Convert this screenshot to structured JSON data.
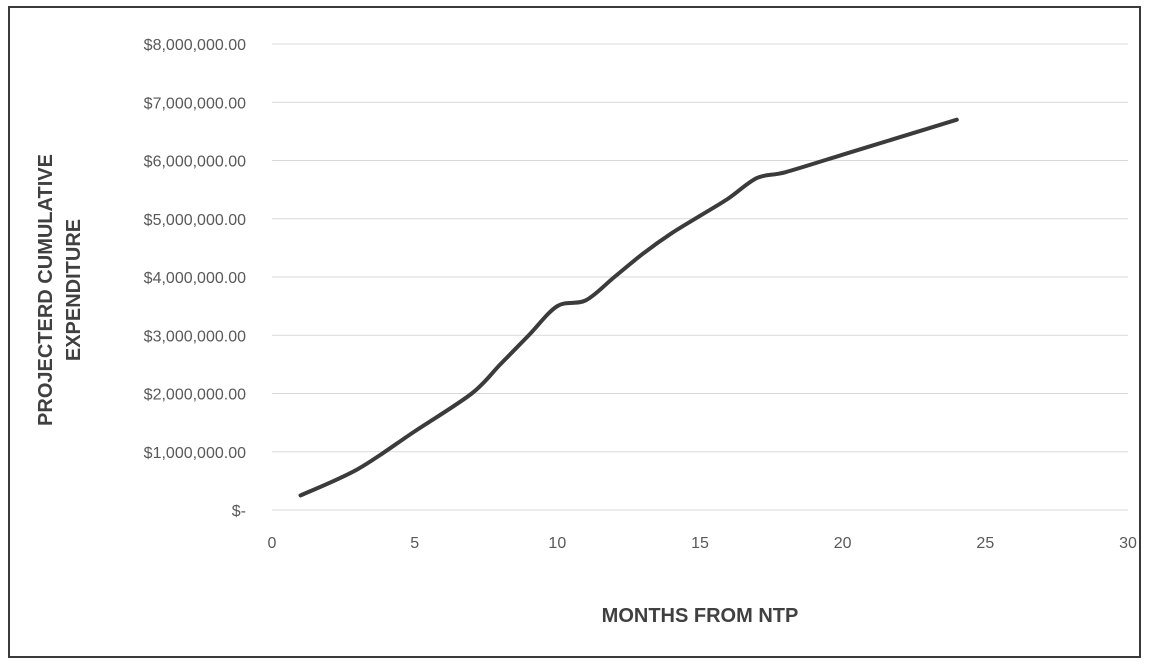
{
  "chart_data": {
    "type": "line",
    "title": "",
    "xlabel": "MONTHS FROM NTP",
    "ylabel_lines": [
      "PROJECTERD CUMULATIVE",
      "EXPENDITURE"
    ],
    "xlim": [
      0,
      30
    ],
    "ylim": [
      0,
      8000000
    ],
    "x_ticks": [
      0,
      5,
      10,
      15,
      20,
      25,
      30
    ],
    "y_ticks": [
      0,
      1000000,
      2000000,
      3000000,
      4000000,
      5000000,
      6000000,
      7000000,
      8000000
    ],
    "x_tick_labels": [
      "0",
      "5",
      "10",
      "15",
      "20",
      "25",
      "30"
    ],
    "y_tick_labels": [
      "$-",
      "$1,000,000.00",
      "$2,000,000.00",
      "$3,000,000.00",
      "$4,000,000.00",
      "$5,000,000.00",
      "$6,000,000.00",
      "$7,000,000.00",
      "$8,000,000.00"
    ],
    "grid": true,
    "legend": "none",
    "line_color": "#3b3b3b",
    "series": [
      {
        "x": [
          1,
          3,
          5,
          7,
          8,
          9,
          10,
          11,
          12,
          13,
          14,
          15,
          16,
          17,
          18,
          20,
          22,
          24
        ],
        "y": [
          250000,
          700000,
          1350000,
          2000000,
          2500000,
          3000000,
          3500000,
          3600000,
          4000000,
          4400000,
          4750000,
          5050000,
          5350000,
          5700000,
          5800000,
          6100000,
          6400000,
          6700000
        ]
      }
    ]
  }
}
